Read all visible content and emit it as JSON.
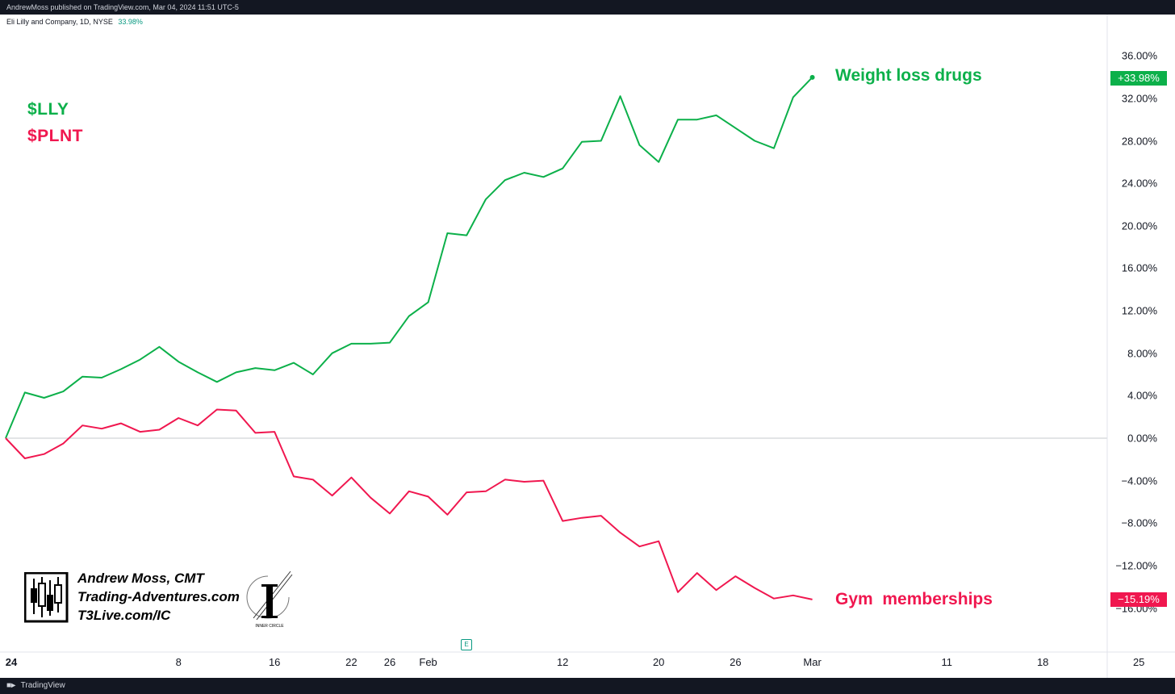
{
  "header": {
    "published": "AndrewMoss published on TradingView.com, Mar 04, 2024 11:51 UTC-5"
  },
  "symbol": {
    "name": "Eli Lilly and Company, 1D, NYSE",
    "change": "33.98%"
  },
  "legend": {
    "lly": "$LLY",
    "plnt": "$PLNT"
  },
  "annotations": {
    "top": "Weight loss drugs",
    "bottom": "Gym  memberships"
  },
  "price_tags": {
    "lly": "+33.98%",
    "plnt": "−15.19%"
  },
  "watermark": {
    "line1": "Andrew Moss, CMT",
    "line2": "Trading-Adventures.com",
    "line3": "T3Live.com/IC",
    "logo_text": "INNER CIRCLE"
  },
  "footer": {
    "brand": "TradingView"
  },
  "earnings_marker": "E",
  "colors": {
    "lly": "#0cb04a",
    "plnt": "#f0174f",
    "zero_line": "#c5c8ce",
    "bars": "#131722"
  },
  "icons": [
    "tradingview-logo-icon",
    "candlestick-logo-icon",
    "inner-circle-logo-icon",
    "earnings-icon"
  ],
  "chart_data": {
    "type": "line",
    "ylim": [
      -16,
      36
    ],
    "y_ticks": [
      "36.00%",
      "32.00%",
      "28.00%",
      "24.00%",
      "20.00%",
      "16.00%",
      "12.00%",
      "8.00%",
      "4.00%",
      "0.00%",
      "−4.00%",
      "−8.00%",
      "−12.00%",
      "−16.00%"
    ],
    "y_tick_values": [
      36,
      32,
      28,
      24,
      20,
      16,
      12,
      8,
      4,
      0,
      -4,
      -8,
      -12,
      -16
    ],
    "x_ticks": [
      "24",
      "8",
      "16",
      "22",
      "26",
      "Feb",
      "12",
      "20",
      "26",
      "Mar",
      "11",
      "18",
      "25"
    ],
    "x_tick_days": [
      -1,
      9,
      14,
      18,
      20,
      22,
      29,
      34,
      38,
      42,
      49,
      54,
      59
    ],
    "x_tick_bold": [
      "24"
    ],
    "series": [
      {
        "name": "$LLY",
        "color": "#0cb04a",
        "days": [
          0,
          1,
          2,
          3,
          4,
          5,
          6,
          7,
          8,
          9,
          10,
          11,
          12,
          13,
          14,
          15,
          16,
          17,
          18,
          19,
          20,
          21,
          22,
          23,
          24,
          25,
          26,
          27,
          28,
          29,
          30,
          31,
          32,
          33,
          34,
          35,
          36,
          37,
          38,
          39,
          40,
          41,
          42
        ],
        "values": [
          0.0,
          4.3,
          3.8,
          4.4,
          5.8,
          5.7,
          6.5,
          7.4,
          8.6,
          7.2,
          6.2,
          5.3,
          6.2,
          6.6,
          6.4,
          7.1,
          6.0,
          8.0,
          8.9,
          8.9,
          9.0,
          11.5,
          12.8,
          19.3,
          19.1,
          22.5,
          24.3,
          25.0,
          24.6,
          25.4,
          27.9,
          28.0,
          32.2,
          27.6,
          26.0,
          30.0,
          30.0,
          30.4,
          29.2,
          28.0,
          27.3,
          32.1,
          33.98
        ]
      },
      {
        "name": "$PLNT",
        "color": "#f0174f",
        "days": [
          0,
          1,
          2,
          3,
          4,
          5,
          6,
          7,
          8,
          9,
          10,
          11,
          12,
          13,
          14,
          15,
          16,
          17,
          18,
          19,
          20,
          21,
          22,
          23,
          24,
          25,
          26,
          27,
          28,
          29,
          30,
          31,
          32,
          33,
          34,
          35,
          36,
          37,
          38,
          39,
          40,
          41,
          42
        ],
        "values": [
          0.0,
          -1.9,
          -1.5,
          -0.5,
          1.2,
          0.9,
          1.4,
          0.6,
          0.8,
          1.9,
          1.2,
          2.7,
          2.6,
          0.5,
          0.6,
          -3.6,
          -3.9,
          -5.4,
          -3.7,
          -5.6,
          -7.1,
          -5.0,
          -5.5,
          -7.2,
          -5.1,
          -5.0,
          -3.9,
          -4.1,
          -4.0,
          -7.8,
          -7.5,
          -7.3,
          -8.9,
          -10.2,
          -9.7,
          -14.5,
          -12.7,
          -14.3,
          -13.0,
          -14.1,
          -15.1,
          -14.8,
          -15.19
        ]
      }
    ]
  }
}
